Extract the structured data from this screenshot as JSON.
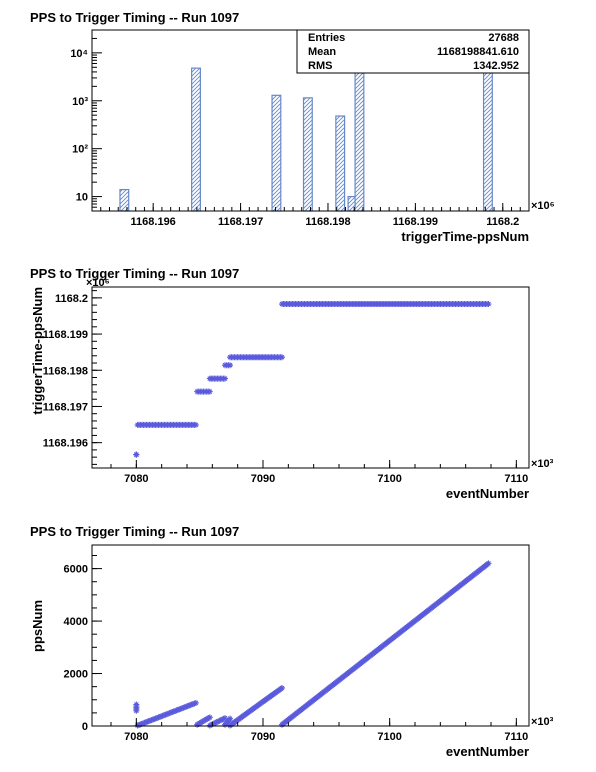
{
  "chart_data": [
    {
      "type": "histogram",
      "title": "PPS to Trigger Timing -- Run 1097",
      "xlabel": "triggerTime-ppsNum",
      "ylabel": "",
      "x_multiplier": "×10⁶",
      "xlim": [
        1168.1953,
        1168.2003
      ],
      "ylog": true,
      "ylim": [
        5,
        30000
      ],
      "x_ticks": [
        1168.196,
        1168.197,
        1168.198,
        1168.199,
        1168.2
      ],
      "x_tick_labels": [
        "1168.196",
        "1168.197",
        "1168.198",
        "1168.199",
        "1168.2"
      ],
      "y_ticks": [
        10,
        100,
        1000,
        10000
      ],
      "y_tick_labels": [
        "10",
        "10²",
        "10³",
        "10⁴"
      ],
      "bar_width": 0.0001,
      "bars": [
        {
          "x": 1168.19567,
          "value": 14
        },
        {
          "x": 1168.19649,
          "value": 4800
        },
        {
          "x": 1168.19741,
          "value": 1300
        },
        {
          "x": 1168.19777,
          "value": 1150
        },
        {
          "x": 1168.19814,
          "value": 480
        },
        {
          "x": 1168.19828,
          "value": 10
        },
        {
          "x": 1168.19836,
          "value": 4200
        },
        {
          "x": 1168.19983,
          "value": 17000
        }
      ],
      "bar_color": "#6688cc",
      "stats": {
        "entries_label": "Entries",
        "entries_value": "27688",
        "mean_label": "Mean",
        "mean_value": "1168198841.610",
        "rms_label": "RMS",
        "rms_value": "1342.952"
      }
    },
    {
      "type": "scatter",
      "title": "PPS to Trigger Timing -- Run 1097",
      "xlabel": "eventNumber",
      "ylabel": "triggerTime-ppsNum",
      "x_multiplier": "×10³",
      "y_multiplier": "×10⁶",
      "xlim": [
        7076.5,
        7111
      ],
      "ylim": [
        1168.1953,
        1168.2003
      ],
      "x_ticks": [
        7080,
        7090,
        7100,
        7110
      ],
      "x_tick_labels": [
        "7080",
        "7090",
        "7100",
        "7110"
      ],
      "y_ticks": [
        1168.196,
        1168.197,
        1168.198,
        1168.199,
        1168.2
      ],
      "y_tick_labels": [
        "1168.196",
        "1168.197",
        "1168.198",
        "1168.199",
        "1168.2"
      ],
      "marker_color": "#5a5adc",
      "segments": [
        {
          "x0": 7080.0,
          "x1": 7080.0,
          "y": 1168.19567
        },
        {
          "x0": 7080.1,
          "x1": 7084.7,
          "y": 1168.19649
        },
        {
          "x0": 7084.8,
          "x1": 7085.8,
          "y": 1168.19741
        },
        {
          "x0": 7085.8,
          "x1": 7087.0,
          "y": 1168.19777
        },
        {
          "x0": 7087.0,
          "x1": 7087.4,
          "y": 1168.19814
        },
        {
          "x0": 7087.4,
          "x1": 7091.5,
          "y": 1168.19836
        },
        {
          "x0": 7091.5,
          "x1": 7107.8,
          "y": 1168.19983
        }
      ]
    },
    {
      "type": "scatter",
      "title": "PPS to Trigger Timing -- Run 1097",
      "xlabel": "eventNumber",
      "ylabel": "ppsNum",
      "x_multiplier": "×10³",
      "xlim": [
        7076.5,
        7111
      ],
      "ylim": [
        0,
        6900
      ],
      "x_ticks": [
        7080,
        7090,
        7100,
        7110
      ],
      "x_tick_labels": [
        "7080",
        "7090",
        "7100",
        "7110"
      ],
      "y_ticks": [
        0,
        2000,
        4000,
        6000
      ],
      "y_tick_labels": [
        "0",
        "2000",
        "4000",
        "6000"
      ],
      "marker_color": "#5a5adc",
      "segments": [
        {
          "x0": 7080.0,
          "x1": 7080.0,
          "y0": 580,
          "y1": 820
        },
        {
          "x0": 7080.1,
          "x1": 7084.7,
          "y0": 20,
          "y1": 880
        },
        {
          "x0": 7084.8,
          "x1": 7085.8,
          "y0": 50,
          "y1": 330
        },
        {
          "x0": 7085.8,
          "x1": 7087.0,
          "y0": 20,
          "y1": 300
        },
        {
          "x0": 7087.0,
          "x1": 7087.4,
          "y0": 50,
          "y1": 280
        },
        {
          "x0": 7087.4,
          "x1": 7091.5,
          "y0": 20,
          "y1": 1450
        },
        {
          "x0": 7091.5,
          "x1": 7107.8,
          "y0": 50,
          "y1": 6200
        }
      ]
    }
  ]
}
